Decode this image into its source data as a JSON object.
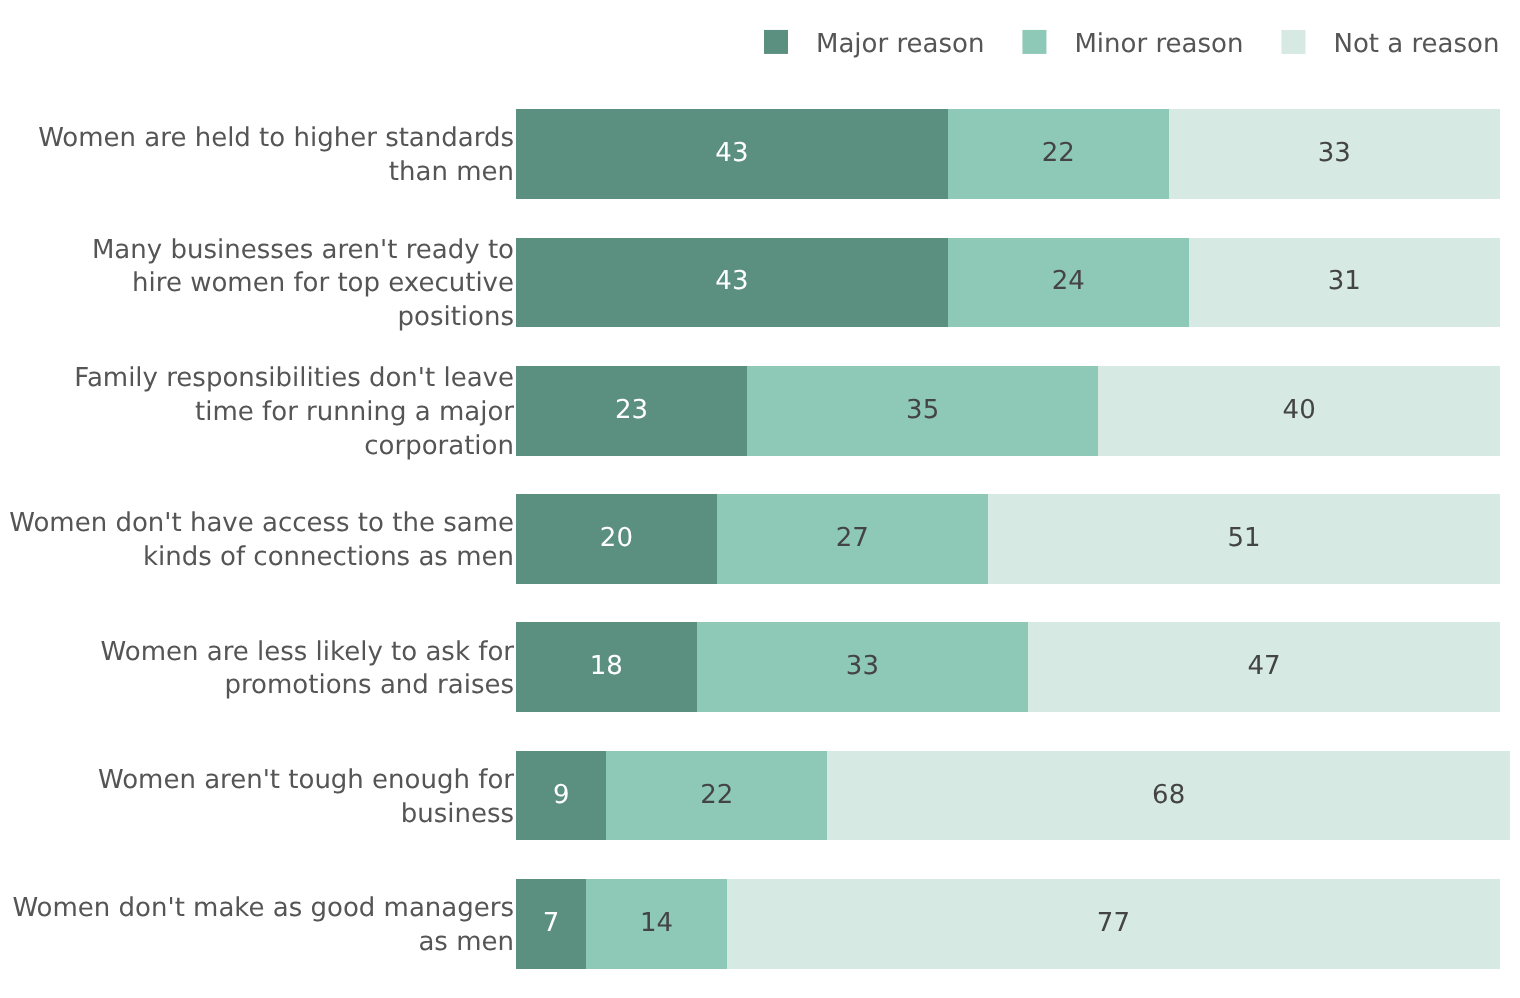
{
  "chart_data": {
    "type": "bar",
    "orientation": "horizontal",
    "stacked": true,
    "data_labels": true,
    "legend": "top right",
    "tick_labels": "y",
    "categories": [
      "Women are held to higher standards than men",
      "Many businesses aren't ready to hire women for top executive positions",
      "Family responsibilities don't leave time for running a major corporation",
      "Women don't have access to the same kinds of connections as men",
      "Women are less likely to ask for promotions and raises",
      "Women aren't tough enough for business",
      "Women don't make as good managers as men"
    ],
    "series": [
      {
        "name": "Major reason",
        "color": "#5b8f80",
        "values": [
          43,
          43,
          23,
          20,
          18,
          9,
          7
        ]
      },
      {
        "name": "Minor reason",
        "color": "#8ec9b8",
        "values": [
          22,
          24,
          35,
          27,
          33,
          22,
          14
        ]
      },
      {
        "name": "Not a reason",
        "color": "#d6e9e3",
        "values": [
          33,
          31,
          40,
          51,
          47,
          68,
          77
        ]
      }
    ]
  }
}
